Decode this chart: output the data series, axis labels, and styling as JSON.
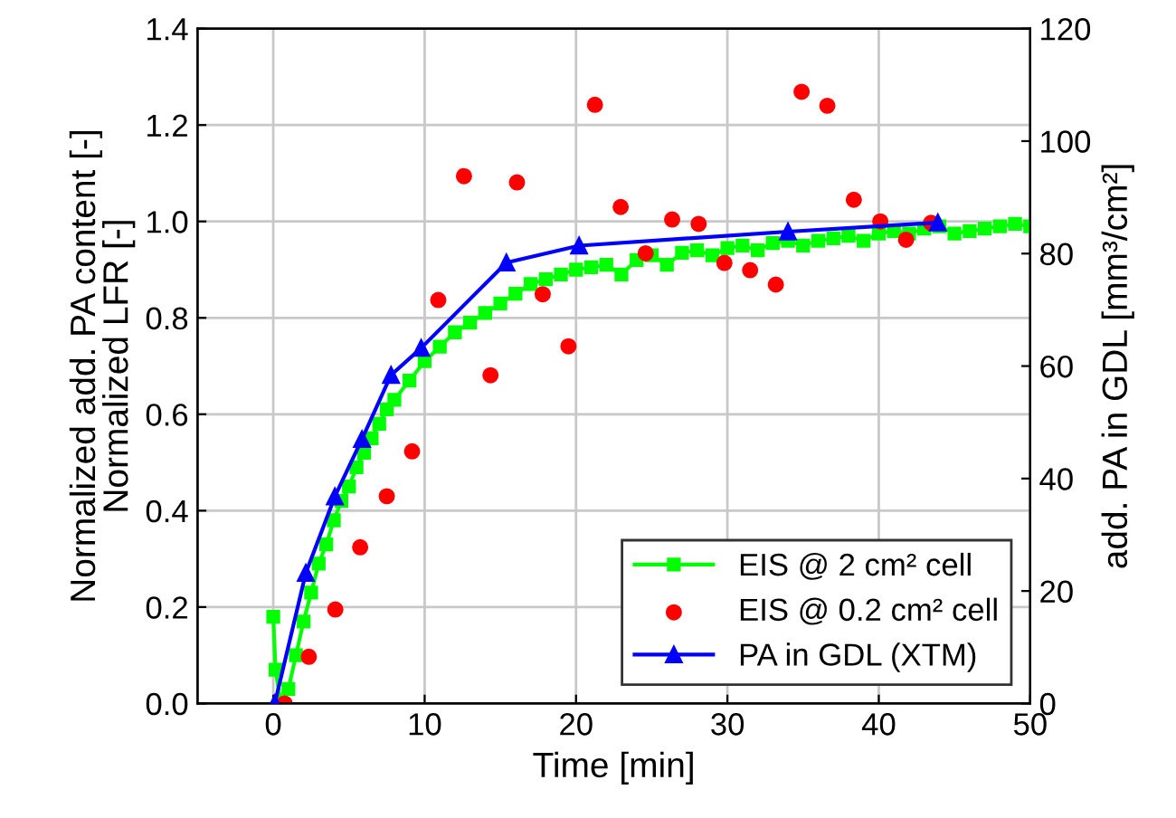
{
  "chart_data": {
    "type": "line",
    "xlabel": "Time [min]",
    "ylabel": "Normalized add. PA content [-]\nNormalized LFR [-]",
    "y2label": "add. PA in GDL [mm³/cm²]",
    "xlim": [
      -5,
      50
    ],
    "xticks": [
      0,
      10,
      20,
      30,
      40,
      50
    ],
    "ylim": [
      0,
      1.4
    ],
    "yticks": [
      {
        "value": 0,
        "label": "0.0"
      },
      {
        "value": 0.2,
        "label": "0.2"
      },
      {
        "value": 0.4,
        "label": "0.4"
      },
      {
        "value": 0.6,
        "label": "0.6"
      },
      {
        "value": 0.8,
        "label": "0.8"
      },
      {
        "value": 1.0,
        "label": "1.0"
      },
      {
        "value": 1.2,
        "label": "1.2"
      },
      {
        "value": 1.4,
        "label": "1.4"
      }
    ],
    "y2lim": [
      0,
      120
    ],
    "y2ticks": [
      0,
      20,
      40,
      60,
      80,
      100,
      120
    ],
    "grid": true,
    "legend": "bottom right",
    "series": [
      {
        "name": "EIS @ 2 cm² cell",
        "marker": "square",
        "color": "#00ff00",
        "x": [
          0,
          0.15,
          0.5,
          1,
          1.5,
          2,
          2.5,
          3,
          3.5,
          4,
          4.5,
          5,
          5.5,
          6,
          6.5,
          7,
          7.5,
          8,
          9,
          10,
          11,
          12,
          13,
          14,
          15,
          16,
          17,
          18,
          19,
          20,
          21,
          22,
          23,
          24,
          25,
          26,
          27,
          28,
          29,
          30,
          31,
          32,
          33,
          34,
          35,
          36,
          37,
          38,
          39,
          40,
          41,
          42,
          43,
          44,
          45,
          46,
          47,
          48,
          49,
          50
        ],
        "values": [
          0.18,
          0.07,
          0.0,
          0.03,
          0.1,
          0.17,
          0.23,
          0.29,
          0.33,
          0.38,
          0.42,
          0.45,
          0.49,
          0.52,
          0.55,
          0.58,
          0.61,
          0.63,
          0.67,
          0.71,
          0.74,
          0.77,
          0.79,
          0.81,
          0.83,
          0.85,
          0.87,
          0.88,
          0.89,
          0.9,
          0.905,
          0.91,
          0.89,
          0.92,
          0.93,
          0.91,
          0.935,
          0.94,
          0.93,
          0.945,
          0.95,
          0.94,
          0.955,
          0.96,
          0.95,
          0.96,
          0.965,
          0.97,
          0.96,
          0.975,
          0.98,
          0.975,
          0.985,
          0.99,
          0.975,
          0.98,
          0.985,
          0.99,
          0.995,
          0.99
        ]
      },
      {
        "name": "EIS @ 0.2 cm² cell",
        "type": "scatter",
        "marker": "circle",
        "color": "#ff0000",
        "x": [
          0.75,
          2.35,
          4.1,
          5.74,
          7.5,
          9.17,
          10.9,
          12.6,
          14.35,
          16.1,
          17.8,
          19.5,
          21.25,
          22.95,
          24.6,
          26.35,
          28.1,
          29.8,
          31.5,
          33.2,
          34.9,
          36.6,
          38.35,
          40.1,
          41.8,
          43.45
        ],
        "values": [
          0.0,
          0.097,
          0.195,
          0.324,
          0.43,
          0.523,
          0.837,
          1.094,
          0.681,
          1.081,
          0.849,
          0.741,
          1.242,
          1.03,
          0.934,
          1.004,
          0.995,
          0.914,
          0.899,
          0.869,
          1.269,
          1.24,
          1.045,
          1.0,
          0.962,
          0.997
        ]
      },
      {
        "name": "PA in GDL (XTM)",
        "marker": "triangle",
        "axis": "y2",
        "color": "#0000ff",
        "x": [
          0.1,
          2.15,
          4.07,
          5.86,
          7.78,
          9.77,
          15.4,
          20.2,
          34.0,
          43.9
        ],
        "values": [
          0,
          23.2,
          36.8,
          47,
          58.4,
          63.2,
          78.4,
          81.4,
          83.9,
          85.5
        ]
      }
    ]
  }
}
